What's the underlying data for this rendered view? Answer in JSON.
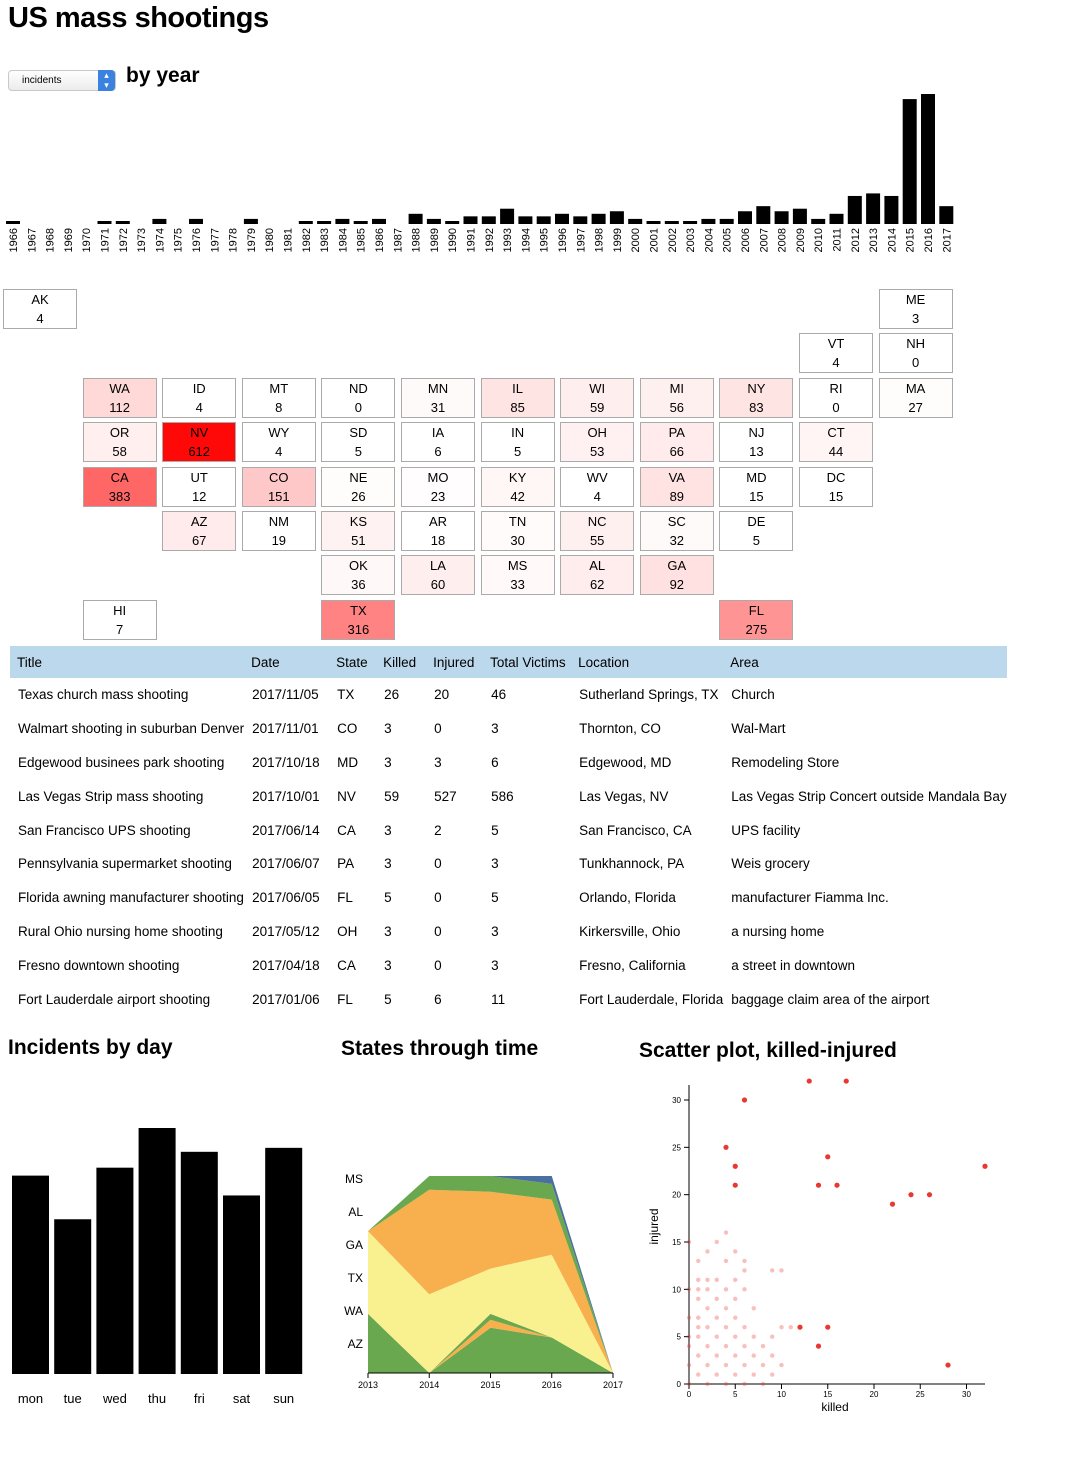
{
  "page": {
    "title": "US mass shootings"
  },
  "controls": {
    "metric_selected": "incidents",
    "by_year_title": "by year"
  },
  "colors": {
    "bar": "#000000",
    "map_max": "#ff0000",
    "header": "#bcd8ec",
    "stream": [
      "#6aa84f",
      "#f9f08f",
      "#f7b04d",
      "#4b6fa0"
    ],
    "scatter": "#e8382f"
  },
  "year_chart": {
    "chart_data": {
      "type": "bar",
      "categories": [
        "1966",
        "1967",
        "1968",
        "1969",
        "1970",
        "1971",
        "1972",
        "1973",
        "1974",
        "1975",
        "1976",
        "1977",
        "1978",
        "1979",
        "1980",
        "1981",
        "1982",
        "1983",
        "1984",
        "1985",
        "1986",
        "1987",
        "1988",
        "1989",
        "1990",
        "1991",
        "1992",
        "1993",
        "1994",
        "1995",
        "1996",
        "1997",
        "1998",
        "1999",
        "2000",
        "2001",
        "2002",
        "2003",
        "2004",
        "2005",
        "2006",
        "2007",
        "2008",
        "2009",
        "2010",
        "2011",
        "2012",
        "2013",
        "2014",
        "2015",
        "2016",
        "2017"
      ],
      "values": [
        1,
        0,
        0,
        0,
        0,
        1,
        1,
        0,
        2,
        0,
        2,
        0,
        0,
        2,
        0,
        0,
        1,
        1,
        2,
        1,
        2,
        0,
        4,
        2,
        1,
        3,
        3,
        6,
        3,
        3,
        4,
        3,
        4,
        5,
        2,
        1,
        1,
        1,
        2,
        2,
        5,
        7,
        5,
        6,
        2,
        4,
        11,
        12,
        11,
        49,
        51,
        7
      ]
    }
  },
  "state_map": {
    "max_value": 612,
    "tiles": [
      {
        "abbr": "AK",
        "value": 4
      },
      {
        "abbr": "ME",
        "value": 3
      },
      {
        "abbr": "VT",
        "value": 4
      },
      {
        "abbr": "NH",
        "value": 0
      },
      {
        "abbr": "WA",
        "value": 112
      },
      {
        "abbr": "ID",
        "value": 4
      },
      {
        "abbr": "MT",
        "value": 8
      },
      {
        "abbr": "ND",
        "value": 0
      },
      {
        "abbr": "MN",
        "value": 31
      },
      {
        "abbr": "IL",
        "value": 85
      },
      {
        "abbr": "WI",
        "value": 59
      },
      {
        "abbr": "MI",
        "value": 56
      },
      {
        "abbr": "NY",
        "value": 83
      },
      {
        "abbr": "RI",
        "value": 0
      },
      {
        "abbr": "MA",
        "value": 27
      },
      {
        "abbr": "OR",
        "value": 58
      },
      {
        "abbr": "NV",
        "value": 612
      },
      {
        "abbr": "WY",
        "value": 4
      },
      {
        "abbr": "SD",
        "value": 5
      },
      {
        "abbr": "IA",
        "value": 6
      },
      {
        "abbr": "IN",
        "value": 5
      },
      {
        "abbr": "OH",
        "value": 53
      },
      {
        "abbr": "PA",
        "value": 66
      },
      {
        "abbr": "NJ",
        "value": 13
      },
      {
        "abbr": "CT",
        "value": 44
      },
      {
        "abbr": "CA",
        "value": 383
      },
      {
        "abbr": "UT",
        "value": 12
      },
      {
        "abbr": "CO",
        "value": 151
      },
      {
        "abbr": "NE",
        "value": 26
      },
      {
        "abbr": "MO",
        "value": 23
      },
      {
        "abbr": "KY",
        "value": 42
      },
      {
        "abbr": "WV",
        "value": 4
      },
      {
        "abbr": "VA",
        "value": 89
      },
      {
        "abbr": "MD",
        "value": 15
      },
      {
        "abbr": "DC",
        "value": 15
      },
      {
        "abbr": "AZ",
        "value": 67
      },
      {
        "abbr": "NM",
        "value": 19
      },
      {
        "abbr": "KS",
        "value": 51
      },
      {
        "abbr": "AR",
        "value": 18
      },
      {
        "abbr": "TN",
        "value": 30
      },
      {
        "abbr": "NC",
        "value": 55
      },
      {
        "abbr": "SC",
        "value": 32
      },
      {
        "abbr": "DE",
        "value": 5
      },
      {
        "abbr": "OK",
        "value": 36
      },
      {
        "abbr": "LA",
        "value": 60
      },
      {
        "abbr": "MS",
        "value": 33
      },
      {
        "abbr": "AL",
        "value": 62
      },
      {
        "abbr": "GA",
        "value": 92
      },
      {
        "abbr": "HI",
        "value": 7
      },
      {
        "abbr": "TX",
        "value": 316
      },
      {
        "abbr": "FL",
        "value": 275
      }
    ]
  },
  "table": {
    "headers": [
      "Title",
      "Date",
      "State",
      "Killed",
      "Injured",
      "Total Victims",
      "Location",
      "Area"
    ],
    "rows": [
      [
        "Texas church mass shooting",
        "2017/11/05",
        "TX",
        "26",
        "20",
        "46",
        "Sutherland Springs, TX",
        "Church"
      ],
      [
        "Walmart shooting in suburban Denver",
        "2017/11/01",
        "CO",
        "3",
        "0",
        "3",
        "Thornton, CO",
        "Wal-Mart"
      ],
      [
        "Edgewood businees park shooting",
        "2017/10/18",
        "MD",
        "3",
        "3",
        "6",
        "Edgewood, MD",
        "Remodeling Store"
      ],
      [
        "Las Vegas Strip mass shooting",
        "2017/10/01",
        "NV",
        "59",
        "527",
        "586",
        "Las Vegas, NV",
        "Las Vegas Strip Concert outside Mandala Bay"
      ],
      [
        "San Francisco UPS shooting",
        "2017/06/14",
        "CA",
        "3",
        "2",
        "5",
        "San Francisco, CA",
        "UPS facility"
      ],
      [
        "Pennsylvania supermarket shooting",
        "2017/06/07",
        "PA",
        "3",
        "0",
        "3",
        "Tunkhannock, PA",
        "Weis grocery"
      ],
      [
        "Florida awning manufacturer shooting",
        "2017/06/05",
        "FL",
        "5",
        "0",
        "5",
        "Orlando, Florida",
        "manufacturer Fiamma Inc."
      ],
      [
        "Rural Ohio nursing home shooting",
        "2017/05/12",
        "OH",
        "3",
        "0",
        "3",
        "Kirkersville, Ohio",
        "a nursing home"
      ],
      [
        "Fresno downtown shooting",
        "2017/04/18",
        "CA",
        "3",
        "0",
        "3",
        "Fresno, California",
        "a street in downtown"
      ],
      [
        "Fort Lauderdale airport shooting",
        "2017/01/06",
        "FL",
        "5",
        "6",
        "11",
        "Fort Lauderdale, Florida",
        "baggage claim area of the airport"
      ]
    ]
  },
  "day_chart": {
    "title": "Incidents by day",
    "chart_data": {
      "type": "bar",
      "categories": [
        "mon",
        "tue",
        "wed",
        "thu",
        "fri",
        "sat",
        "sun"
      ],
      "values": [
        50,
        39,
        52,
        62,
        56,
        45,
        57
      ]
    }
  },
  "stream_chart": {
    "title": "States through time",
    "chart_data": {
      "type": "area",
      "x": [
        "2013",
        "2014",
        "2015",
        "2016",
        "2017"
      ],
      "y_labels": [
        "MS",
        "AL",
        "GA",
        "TX",
        "WA",
        "AZ"
      ],
      "series": [
        {
          "values": [
            0.3,
            0,
            0.23,
            0.18,
            0
          ]
        },
        {
          "values": [
            0,
            0,
            0.04,
            0,
            0
          ]
        },
        {
          "values": [
            0,
            0,
            0.03,
            0,
            0
          ]
        },
        {
          "values": [
            0.42,
            0.4,
            0.23,
            0.42,
            0
          ]
        },
        {
          "values": [
            0,
            0.53,
            0.39,
            0.28,
            0
          ]
        },
        {
          "values": [
            0,
            0.07,
            0.08,
            0.08,
            0
          ]
        },
        {
          "values": [
            0,
            0,
            0,
            0.04,
            0
          ]
        }
      ]
    }
  },
  "scatter_chart": {
    "title": "Scatter plot, killed-injured",
    "chart_data": {
      "type": "scatter",
      "xlabel": "killed",
      "ylabel": "injured",
      "xlim": [
        0,
        32
      ],
      "ylim": [
        0,
        30
      ],
      "xticks": [
        "0",
        "5",
        "10",
        "15",
        "20",
        "25",
        "30"
      ],
      "yticks": [
        "0",
        "5",
        "10",
        "15",
        "20",
        "25",
        "30"
      ],
      "points": [
        [
          13,
          32
        ],
        [
          17,
          32
        ],
        [
          6,
          30
        ],
        [
          4,
          25
        ],
        [
          5,
          23
        ],
        [
          15,
          24
        ],
        [
          32,
          23
        ],
        [
          5,
          21
        ],
        [
          14,
          21
        ],
        [
          16,
          21
        ],
        [
          24,
          20
        ],
        [
          26,
          20
        ],
        [
          22,
          19
        ],
        [
          4,
          16
        ],
        [
          0,
          15
        ],
        [
          3,
          15
        ],
        [
          5,
          14
        ],
        [
          1,
          13
        ],
        [
          2,
          14
        ],
        [
          4,
          13
        ],
        [
          6,
          13
        ],
        [
          6,
          12
        ],
        [
          9,
          12
        ],
        [
          10,
          12
        ],
        [
          1,
          11
        ],
        [
          2,
          11
        ],
        [
          3,
          11
        ],
        [
          5,
          11
        ],
        [
          0,
          10
        ],
        [
          1,
          10
        ],
        [
          2,
          10
        ],
        [
          4,
          10
        ],
        [
          6,
          10
        ],
        [
          1,
          9
        ],
        [
          3,
          9
        ],
        [
          5,
          9
        ],
        [
          2,
          8
        ],
        [
          4,
          8
        ],
        [
          7,
          8
        ],
        [
          0,
          7
        ],
        [
          1,
          7
        ],
        [
          3,
          7
        ],
        [
          5,
          7
        ],
        [
          10,
          6
        ],
        [
          11,
          6
        ],
        [
          12,
          6
        ],
        [
          15,
          6
        ],
        [
          1,
          6
        ],
        [
          2,
          6
        ],
        [
          4,
          6
        ],
        [
          6,
          6
        ],
        [
          0,
          5
        ],
        [
          1,
          5
        ],
        [
          3,
          5
        ],
        [
          5,
          5
        ],
        [
          7,
          5
        ],
        [
          9,
          5
        ],
        [
          0,
          4
        ],
        [
          2,
          4
        ],
        [
          4,
          4
        ],
        [
          6,
          4
        ],
        [
          8,
          4
        ],
        [
          14,
          4
        ],
        [
          1,
          3
        ],
        [
          3,
          3
        ],
        [
          5,
          3
        ],
        [
          7,
          3
        ],
        [
          9,
          3
        ],
        [
          0,
          2
        ],
        [
          2,
          2
        ],
        [
          4,
          2
        ],
        [
          6,
          2
        ],
        [
          8,
          2
        ],
        [
          10,
          2
        ],
        [
          28,
          2
        ],
        [
          1,
          1
        ],
        [
          3,
          1
        ],
        [
          5,
          1
        ],
        [
          7,
          1
        ],
        [
          9,
          1
        ],
        [
          0,
          0
        ],
        [
          2,
          0
        ],
        [
          4,
          0
        ],
        [
          6,
          0
        ],
        [
          8,
          0
        ]
      ]
    }
  }
}
